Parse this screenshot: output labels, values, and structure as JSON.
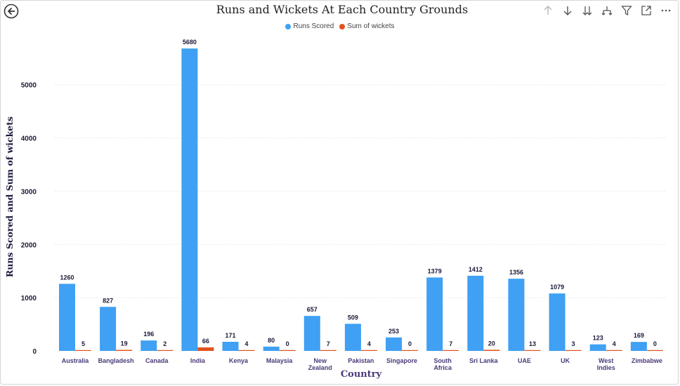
{
  "header": {
    "title": "Runs and Wickets At Each Country Grounds",
    "back_icon": "back-arrow-icon",
    "tools": [
      {
        "name": "drill-up-icon",
        "glyph": "↑"
      },
      {
        "name": "drill-down-icon",
        "glyph": "↓"
      },
      {
        "name": "expand-next-level-icon",
        "glyph": "⇊"
      },
      {
        "name": "expand-hierarchy-icon",
        "glyph": "⨆"
      },
      {
        "name": "filter-icon",
        "glyph": "⧩"
      },
      {
        "name": "focus-mode-icon",
        "glyph": "⤢"
      },
      {
        "name": "more-options-icon",
        "glyph": "⋯"
      }
    ]
  },
  "colors": {
    "runs": "#3fa0f4",
    "wickets": "#e0521f",
    "axis_text": "#1a1a3a",
    "category_text": "#4a3a7a"
  },
  "chart_data": {
    "type": "bar",
    "title": "Runs and Wickets At Each Country Grounds",
    "xlabel": "Country",
    "ylabel": "Runs Scored and Sum of wickets",
    "ylim": [
      0,
      5800
    ],
    "yticks": [
      0,
      1000,
      2000,
      3000,
      4000,
      5000
    ],
    "grid": true,
    "legend_position": "top-center",
    "categories": [
      "Australia",
      "Bangladesh",
      "Canada",
      "India",
      "Kenya",
      "Malaysia",
      "New Zealand",
      "Pakistan",
      "Singapore",
      "South Africa",
      "Sri Lanka",
      "UAE",
      "UK",
      "West Indies",
      "Zimbabwe"
    ],
    "series": [
      {
        "name": "Runs Scored",
        "values": [
          1260,
          827,
          196,
          5680,
          171,
          80,
          657,
          509,
          253,
          1379,
          1412,
          1356,
          1079,
          123,
          169
        ]
      },
      {
        "name": "Sum of wickets",
        "values": [
          5,
          19,
          2,
          66,
          4,
          0,
          7,
          4,
          0,
          7,
          20,
          13,
          3,
          4,
          0
        ]
      }
    ]
  }
}
